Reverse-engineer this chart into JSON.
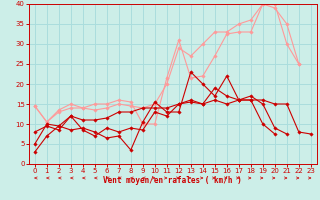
{
  "bg_color": "#cceee8",
  "grid_color": "#aadddd",
  "line_color_dark": "#cc0000",
  "line_color_light": "#ff9999",
  "xlabel": "Vent moyen/en rafales ( km/h )",
  "xlabel_color": "#cc0000",
  "tick_color": "#cc0000",
  "xlim": [
    -0.5,
    23.5
  ],
  "ylim": [
    0,
    40
  ],
  "xticks": [
    0,
    1,
    2,
    3,
    4,
    5,
    6,
    7,
    8,
    9,
    10,
    11,
    12,
    13,
    14,
    15,
    16,
    17,
    18,
    19,
    20,
    21,
    22,
    23
  ],
  "yticks": [
    0,
    5,
    10,
    15,
    20,
    25,
    30,
    35,
    40
  ],
  "series_dark": [
    {
      "x": [
        0,
        1,
        2,
        3,
        4,
        5,
        6,
        7,
        8,
        9,
        10,
        11,
        12,
        13,
        14,
        15,
        16,
        17,
        18,
        19,
        20
      ],
      "y": [
        3,
        7,
        9.5,
        8.5,
        9,
        8,
        6.5,
        7,
        3.5,
        10.5,
        15.5,
        13,
        13,
        23,
        20,
        17,
        22,
        16,
        16,
        10,
        7.5
      ]
    },
    {
      "x": [
        0,
        1,
        2,
        3,
        4,
        5,
        6,
        7,
        8,
        9,
        10,
        11,
        12,
        13,
        14,
        15,
        16,
        17,
        18,
        19,
        20,
        21
      ],
      "y": [
        8,
        9.5,
        8.5,
        12,
        8.5,
        7,
        9,
        8,
        9,
        8.5,
        13,
        12,
        15,
        16,
        15,
        19,
        17,
        16,
        17,
        15,
        9,
        7.5
      ]
    },
    {
      "x": [
        0,
        1,
        2,
        3,
        4,
        5,
        6,
        7,
        8,
        9,
        10,
        11,
        12,
        13,
        14,
        15,
        16,
        17,
        18,
        19,
        20,
        21,
        22,
        23
      ],
      "y": [
        5,
        10,
        9.5,
        12,
        11,
        11,
        11.5,
        13,
        13,
        14,
        14,
        14,
        15,
        15.5,
        15,
        16,
        15,
        16,
        16,
        16,
        15,
        15,
        8,
        7.5
      ]
    }
  ],
  "series_light": [
    {
      "x": [
        0,
        1,
        2,
        3,
        4,
        5,
        6,
        7,
        8,
        9,
        10,
        11,
        12,
        13,
        14,
        15,
        16,
        17,
        18,
        19,
        20,
        21,
        22
      ],
      "y": [
        14.5,
        10.5,
        13.5,
        15,
        14,
        15,
        15,
        16,
        15.5,
        10,
        10,
        21.5,
        31,
        21.5,
        22,
        27,
        32.5,
        33,
        33,
        40,
        40,
        30,
        25
      ]
    },
    {
      "x": [
        0,
        1,
        2,
        3,
        4,
        5,
        6,
        7,
        8,
        9,
        10,
        11,
        12,
        13,
        14,
        15,
        16,
        17,
        18,
        19,
        20,
        21,
        22
      ],
      "y": [
        14.5,
        10.5,
        13,
        14,
        14,
        13.5,
        14,
        15,
        14.5,
        14,
        15,
        20,
        29,
        27,
        30,
        33,
        33,
        35,
        36,
        40,
        39,
        35,
        25
      ]
    }
  ]
}
